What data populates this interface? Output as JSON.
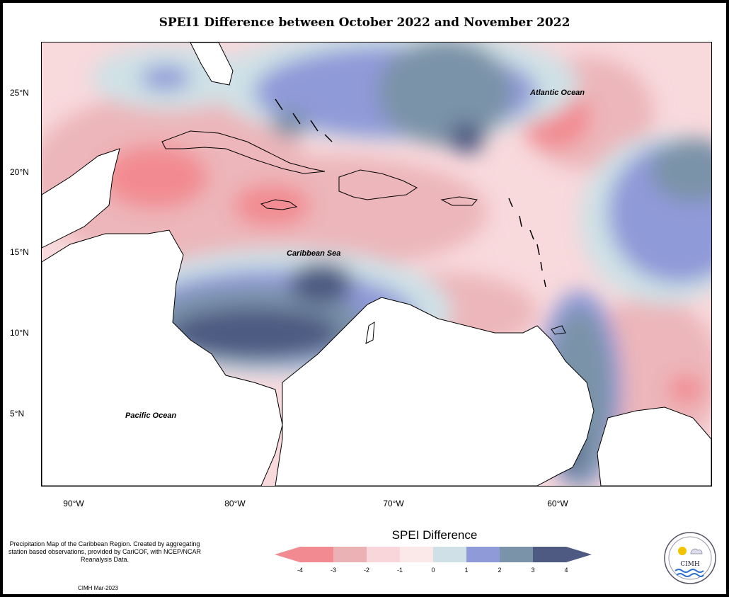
{
  "title": "SPEI1 Difference between October 2022 and November 2022",
  "map": {
    "labels": {
      "atlantic": "Atlantic Ocean",
      "caribbean": "Caribbean Sea",
      "pacific": "Pacific Ocean"
    },
    "latitude_ticks": [
      "25°N",
      "20°N",
      "15°N",
      "10°N",
      "5°N"
    ],
    "longitude_ticks": [
      "90°W",
      "80°W",
      "70°W",
      "60°W"
    ]
  },
  "legend": {
    "title": "SPEI Difference",
    "ticks": [
      "-4",
      "-3",
      "-2",
      "-1",
      "0",
      "1",
      "2",
      "3",
      "4"
    ],
    "colors": [
      "#f28b91",
      "#ebb2b6",
      "#f8d6da",
      "#fbe9ea",
      "#cfe1e6",
      "#8f9ad8",
      "#7a93a8",
      "#4e5a82"
    ]
  },
  "footer": {
    "note": "Precipitation Map of the Caribbean Region. Created by aggregating station based observations, provided by CariCOF, with NCEP/NCAR Reanalysis Data.",
    "credit": "CIMH Mar-2023",
    "logo_text": "CIMH"
  }
}
